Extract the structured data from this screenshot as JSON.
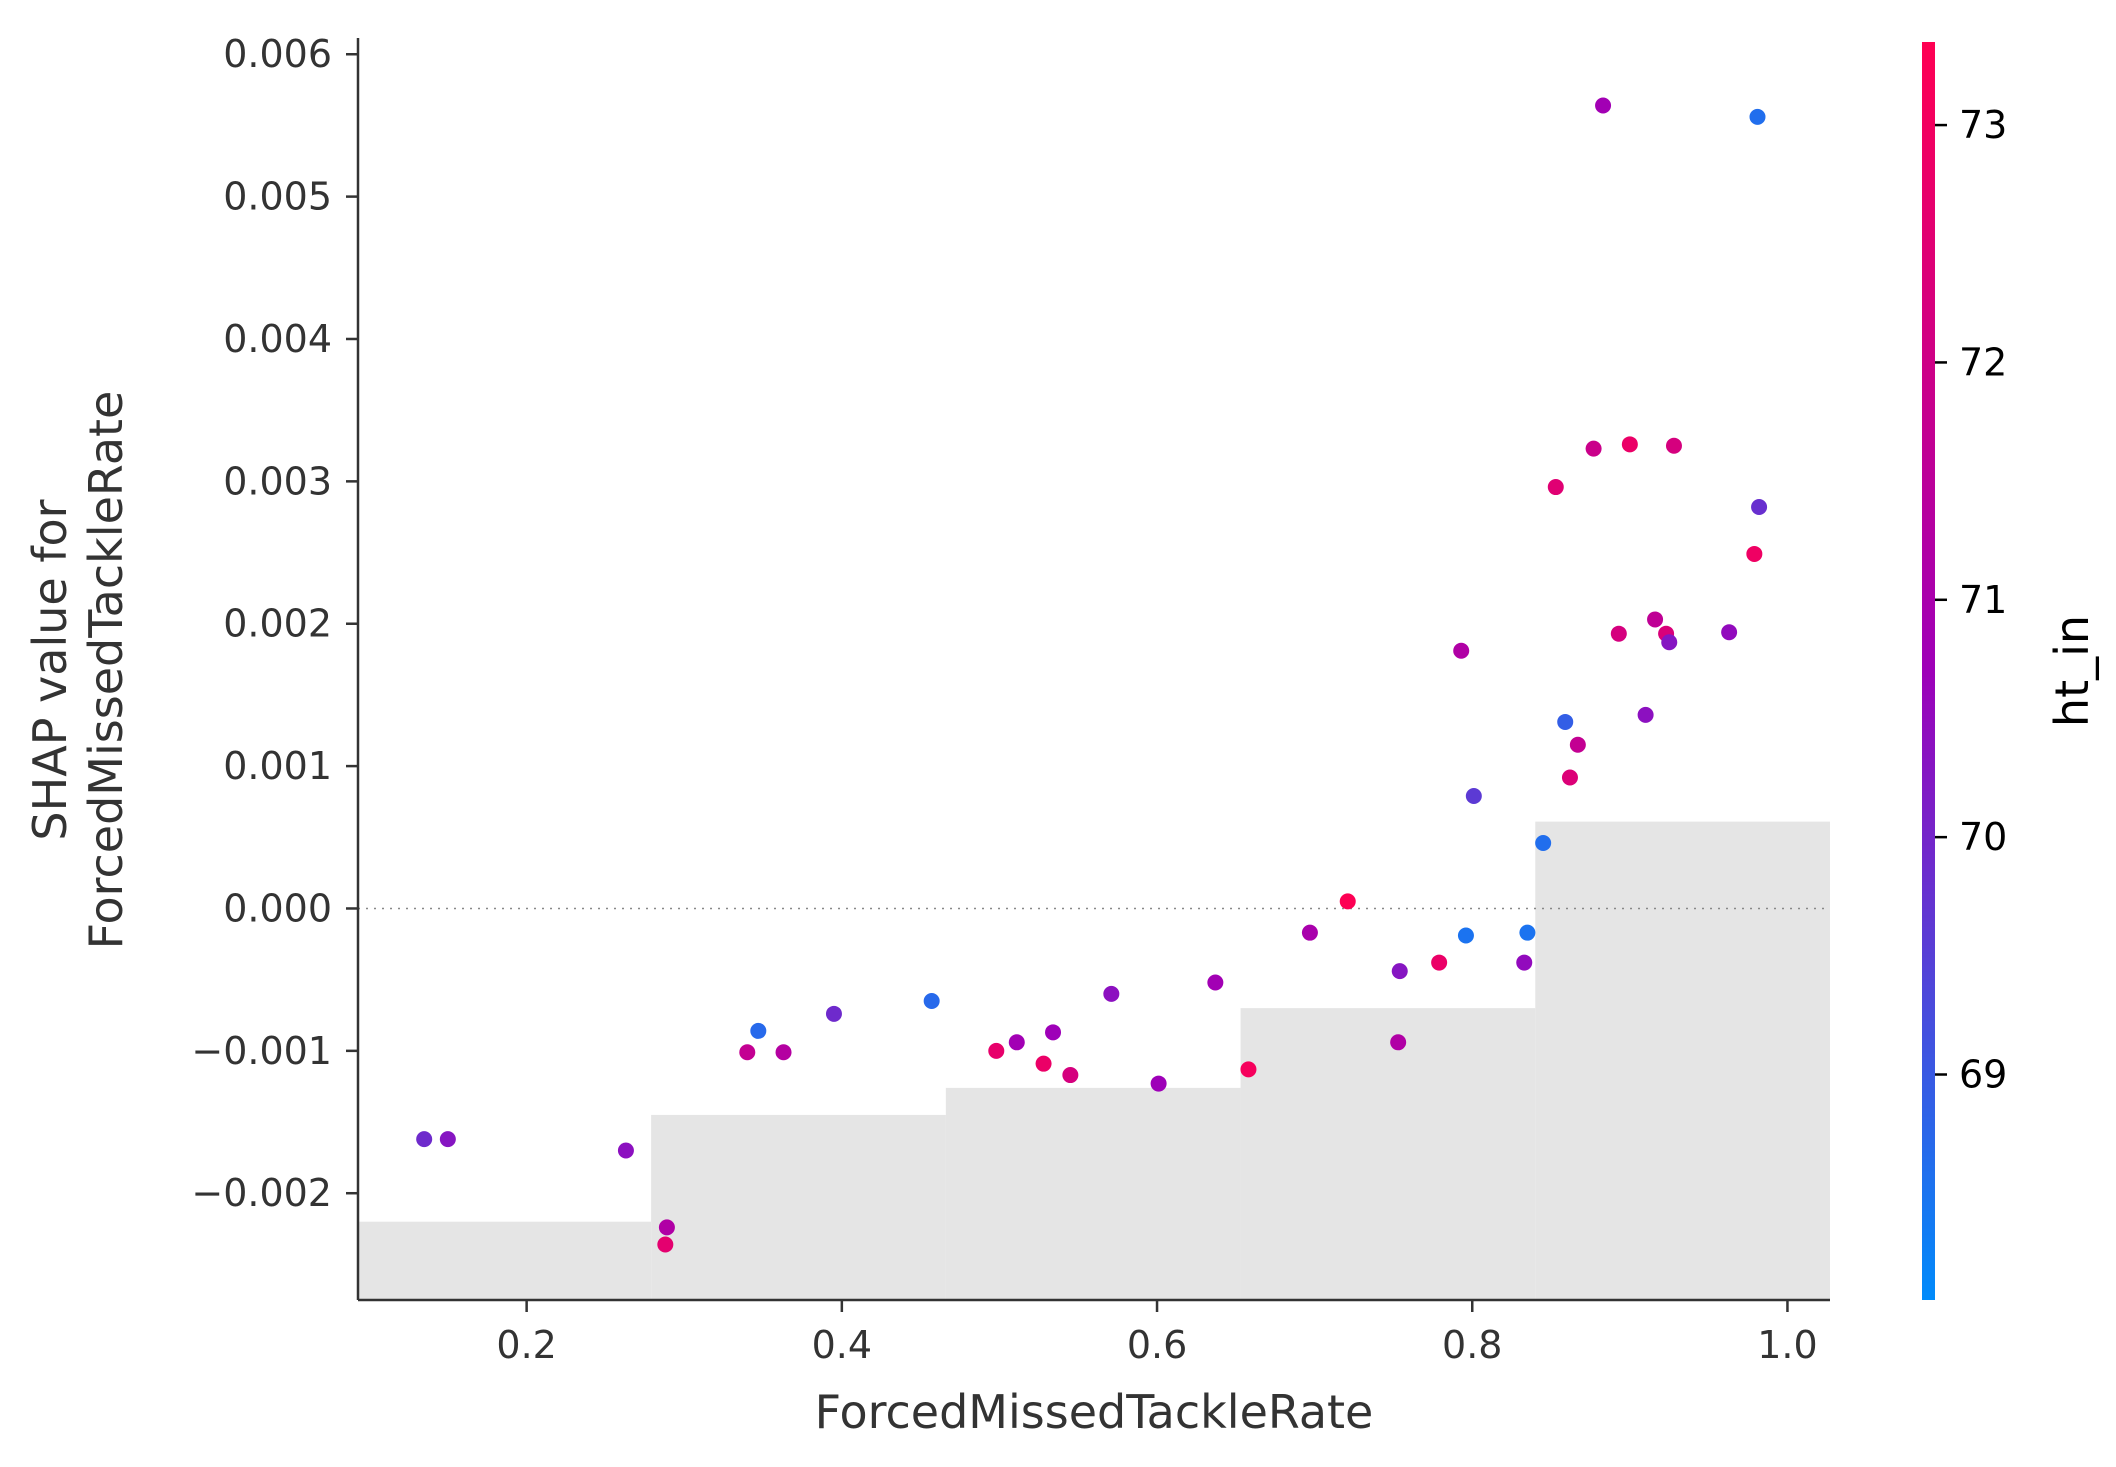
{
  "chart_data": {
    "type": "scatter",
    "xlabel": "ForcedMissedTackleRate",
    "ylabel_lines": [
      "SHAP value for",
      "ForcedMissedTackleRate"
    ],
    "xlim": [
      0.093,
      1.027
    ],
    "ylim": [
      -0.00275,
      0.0061
    ],
    "x_ticks": [
      0.2,
      0.4,
      0.6,
      0.8,
      1.0
    ],
    "x_tick_labels": [
      "0.2",
      "0.4",
      "0.6",
      "0.8",
      "1.0"
    ],
    "y_ticks": [
      -0.002,
      -0.001,
      0.0,
      0.001,
      0.002,
      0.003,
      0.004,
      0.005,
      0.006
    ],
    "y_tick_labels": [
      "−0.002",
      "−0.001",
      "0.000",
      "0.001",
      "0.002",
      "0.003",
      "0.004",
      "0.005",
      "0.006"
    ],
    "zero_line": 0.0,
    "histogram_steps": [
      {
        "x0": 0.093,
        "x1": 0.279,
        "y": -0.0022
      },
      {
        "x0": 0.279,
        "x1": 0.466,
        "y": -0.00145
      },
      {
        "x0": 0.466,
        "x1": 0.653,
        "y": -0.00126
      },
      {
        "x0": 0.653,
        "x1": 0.84,
        "y": -0.0007
      },
      {
        "x0": 0.84,
        "x1": 1.027,
        "y": 0.00061
      }
    ],
    "colorbar": {
      "label": "ht_in",
      "range": [
        68.05,
        73.35
      ],
      "ticks": [
        69,
        70,
        71,
        72,
        73
      ],
      "tick_labels": [
        "69",
        "70",
        "71",
        "72",
        "73"
      ],
      "color_low": "#008bfb",
      "color_mid": "#9e00b8",
      "color_high": "#ff0052"
    },
    "points": [
      {
        "x": 0.135,
        "y": -0.00162,
        "c": 69.9
      },
      {
        "x": 0.15,
        "y": -0.00162,
        "c": 70.3
      },
      {
        "x": 0.263,
        "y": -0.0017,
        "c": 70.4
      },
      {
        "x": 0.289,
        "y": -0.00224,
        "c": 71.2
      },
      {
        "x": 0.288,
        "y": -0.00236,
        "c": 72.6
      },
      {
        "x": 0.34,
        "y": -0.00101,
        "c": 71.7
      },
      {
        "x": 0.347,
        "y": -0.00086,
        "c": 68.7
      },
      {
        "x": 0.363,
        "y": -0.00101,
        "c": 71.3
      },
      {
        "x": 0.395,
        "y": -0.00074,
        "c": 69.9
      },
      {
        "x": 0.457,
        "y": -0.00065,
        "c": 68.7
      },
      {
        "x": 0.498,
        "y": -0.001,
        "c": 72.7
      },
      {
        "x": 0.511,
        "y": -0.00094,
        "c": 70.8
      },
      {
        "x": 0.528,
        "y": -0.00109,
        "c": 72.8
      },
      {
        "x": 0.534,
        "y": -0.00087,
        "c": 70.7
      },
      {
        "x": 0.545,
        "y": -0.00117,
        "c": 72.2
      },
      {
        "x": 0.571,
        "y": -0.0006,
        "c": 70.4
      },
      {
        "x": 0.601,
        "y": -0.00123,
        "c": 70.7
      },
      {
        "x": 0.637,
        "y": -0.00052,
        "c": 70.8
      },
      {
        "x": 0.658,
        "y": -0.00113,
        "c": 73.1
      },
      {
        "x": 0.697,
        "y": -0.00017,
        "c": 71.0
      },
      {
        "x": 0.721,
        "y": 5e-05,
        "c": 73.3
      },
      {
        "x": 0.753,
        "y": -0.00094,
        "c": 71.2
      },
      {
        "x": 0.754,
        "y": -0.00044,
        "c": 70.3
      },
      {
        "x": 0.779,
        "y": -0.00038,
        "c": 72.8
      },
      {
        "x": 0.793,
        "y": 0.00181,
        "c": 71.2
      },
      {
        "x": 0.796,
        "y": -0.00019,
        "c": 68.5
      },
      {
        "x": 0.801,
        "y": 0.00079,
        "c": 69.6
      },
      {
        "x": 0.833,
        "y": -0.00038,
        "c": 70.5
      },
      {
        "x": 0.835,
        "y": -0.00017,
        "c": 68.5
      },
      {
        "x": 0.845,
        "y": 0.00046,
        "c": 68.6
      },
      {
        "x": 0.853,
        "y": 0.00296,
        "c": 72.5
      },
      {
        "x": 0.859,
        "y": 0.00131,
        "c": 68.9
      },
      {
        "x": 0.862,
        "y": 0.00092,
        "c": 72.4
      },
      {
        "x": 0.867,
        "y": 0.00115,
        "c": 71.7
      },
      {
        "x": 0.877,
        "y": 0.00323,
        "c": 71.9
      },
      {
        "x": 0.883,
        "y": 0.00564,
        "c": 70.8
      },
      {
        "x": 0.893,
        "y": 0.00193,
        "c": 72.2
      },
      {
        "x": 0.9,
        "y": 0.00326,
        "c": 72.8
      },
      {
        "x": 0.91,
        "y": 0.00136,
        "c": 70.4
      },
      {
        "x": 0.916,
        "y": 0.00203,
        "c": 71.6
      },
      {
        "x": 0.923,
        "y": 0.00193,
        "c": 72.3
      },
      {
        "x": 0.925,
        "y": 0.00187,
        "c": 70.3
      },
      {
        "x": 0.928,
        "y": 0.00325,
        "c": 72.2
      },
      {
        "x": 0.963,
        "y": 0.00194,
        "c": 70.5
      },
      {
        "x": 0.979,
        "y": 0.00249,
        "c": 72.9
      },
      {
        "x": 0.981,
        "y": 0.00556,
        "c": 68.6
      },
      {
        "x": 0.982,
        "y": 0.00282,
        "c": 69.8
      }
    ]
  }
}
